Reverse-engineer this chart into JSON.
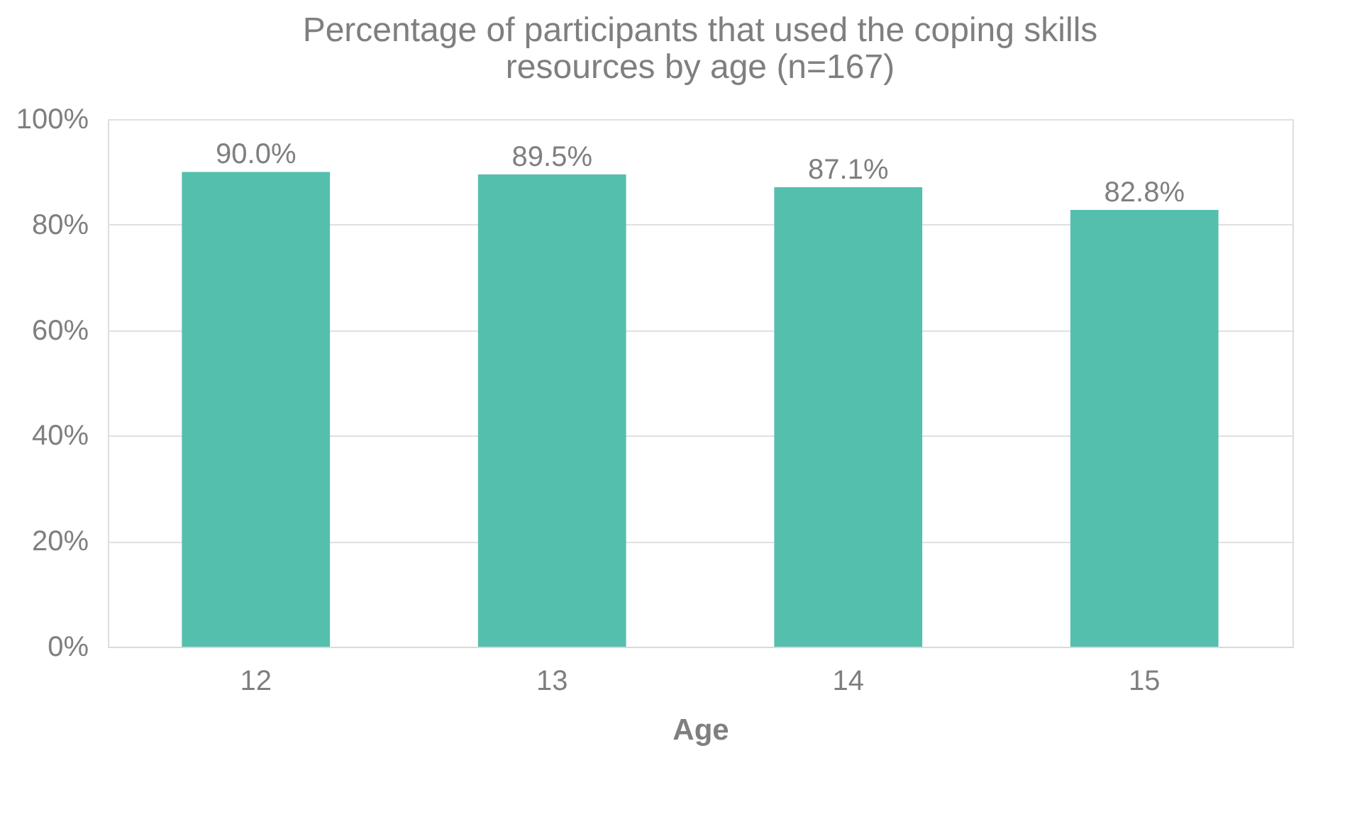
{
  "chart_data": {
    "type": "bar",
    "title": "Percentage of participants that used the coping skills resources by age (n=167)",
    "xlabel": "Age",
    "categories": [
      "12",
      "13",
      "14",
      "15"
    ],
    "values": [
      90.0,
      89.5,
      87.1,
      82.8
    ],
    "value_labels": [
      "90.0%",
      "89.5%",
      "87.1%",
      "82.8%"
    ],
    "color": "#55bfad",
    "ylim": [
      0,
      100
    ],
    "yticks": [
      {
        "value": 0,
        "label": "0%"
      },
      {
        "value": 20,
        "label": "20%"
      },
      {
        "value": 40,
        "label": "40%"
      },
      {
        "value": 60,
        "label": "60%"
      },
      {
        "value": 80,
        "label": "80%"
      },
      {
        "value": 100,
        "label": "100%"
      }
    ],
    "grid": "y"
  }
}
